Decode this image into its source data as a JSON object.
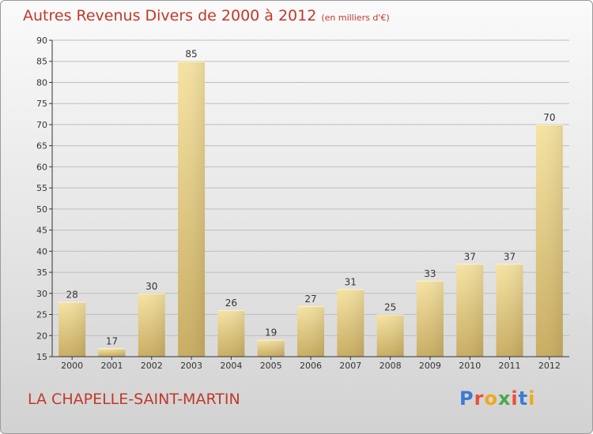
{
  "title": "Autres Revenus Divers de 2000 à 2012",
  "unit": "(en milliers d'€)",
  "location": "LA CHAPELLE-SAINT-MARTIN",
  "logo": {
    "text": "Proxiti",
    "colors": [
      "#3b7bd6",
      "#e94f3b",
      "#f0a81c",
      "#4aa84a",
      "#e94f3b",
      "#3b7bd6",
      "#f0a81c"
    ]
  },
  "colors": {
    "title": "#c0392b",
    "bar_light": "#f6e3a3",
    "bar_dark": "#c9ad62",
    "grid": "#bdbdbd",
    "axis": "#333333"
  },
  "chart_data": {
    "type": "bar",
    "categories": [
      "2000",
      "2001",
      "2002",
      "2003",
      "2004",
      "2005",
      "2006",
      "2007",
      "2008",
      "2009",
      "2010",
      "2011",
      "2012"
    ],
    "values": [
      28,
      17,
      30,
      85,
      26,
      19,
      27,
      31,
      25,
      33,
      37,
      37,
      70
    ],
    "ylim": [
      15,
      90
    ],
    "yticks": [
      15,
      20,
      25,
      30,
      35,
      40,
      45,
      50,
      55,
      60,
      65,
      70,
      75,
      80,
      85,
      90
    ],
    "grid": true,
    "xlabel": "",
    "ylabel": ""
  }
}
